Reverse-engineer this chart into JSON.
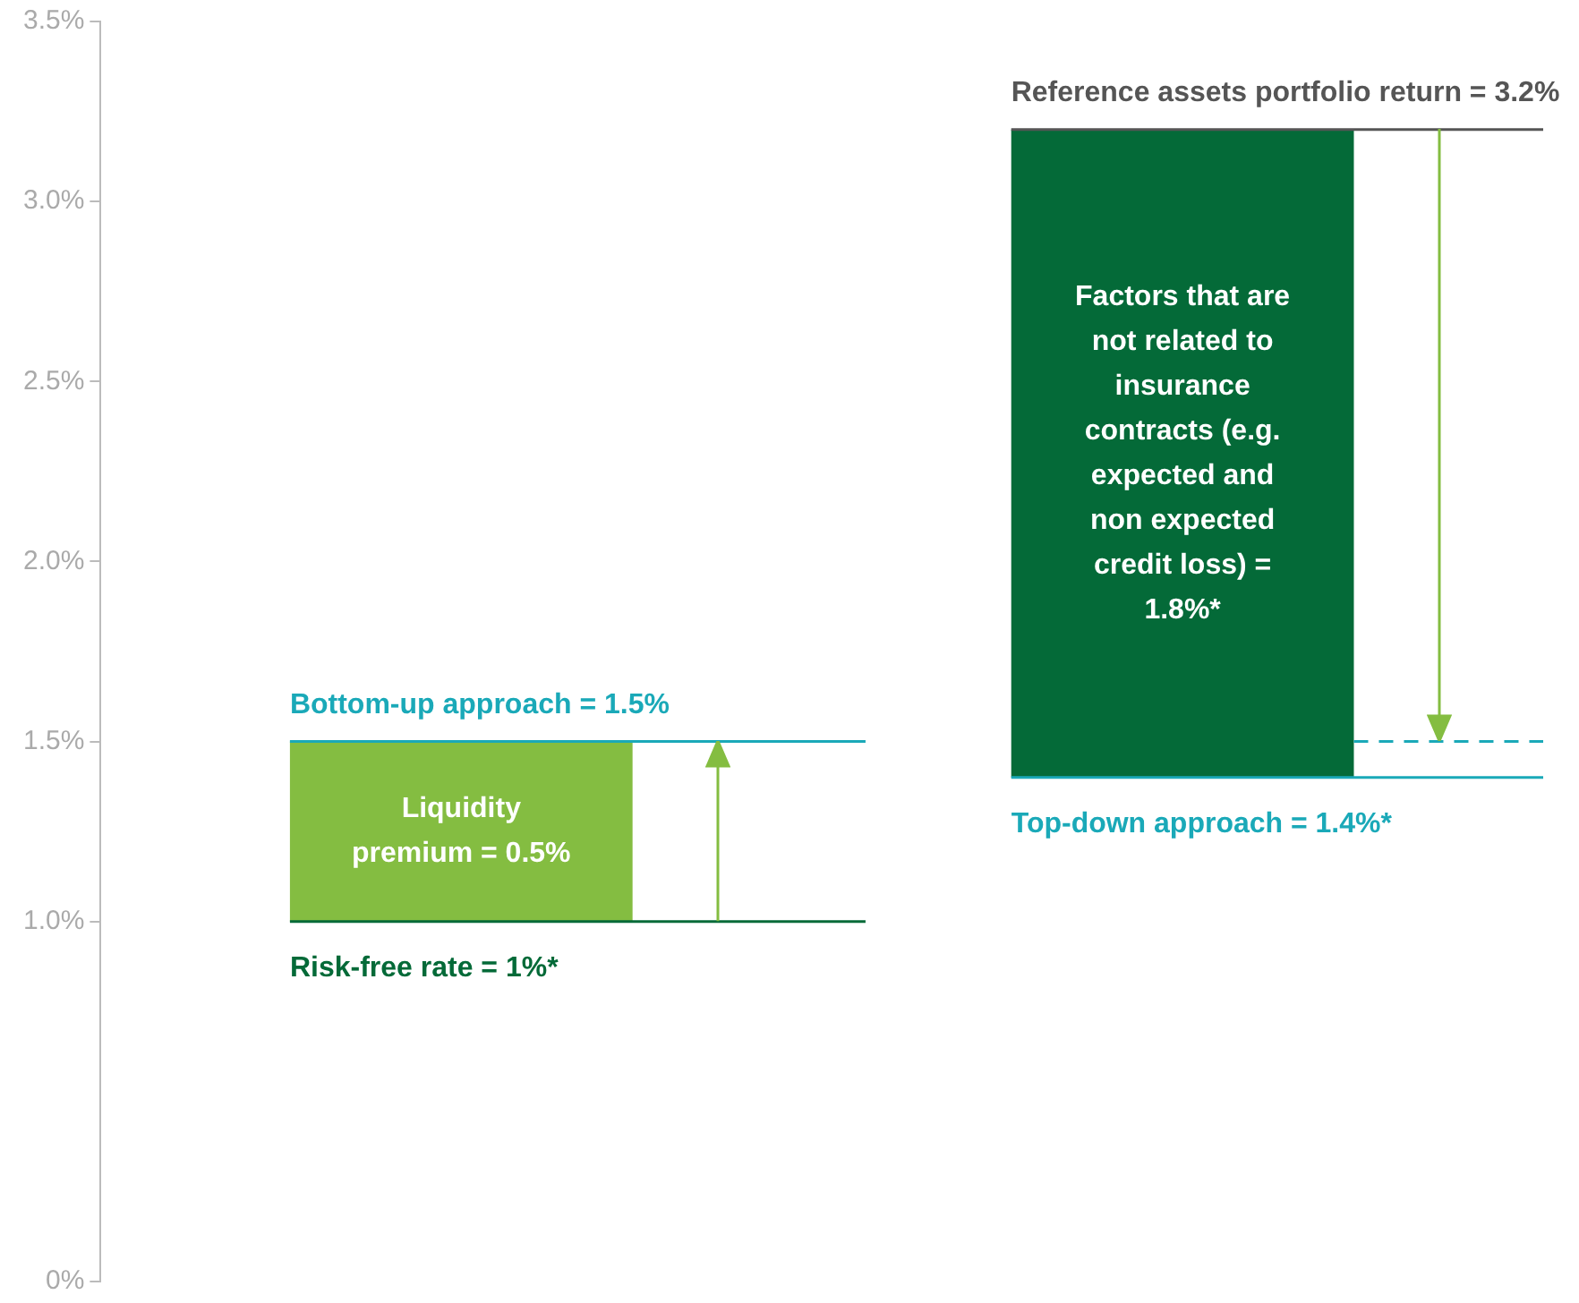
{
  "chart_data": {
    "type": "bar",
    "categories": [
      null,
      null
    ],
    "base": [
      1.0,
      1.4
    ],
    "values": [
      0.5,
      1.8
    ],
    "colors": [
      "#84bd41",
      "#046a38"
    ],
    "value_labels": [
      "Liquidity premium = 0.5%",
      "Factors that are not related to insurance contracts (e.g. expected and non expected credit loss) = 1.8%*"
    ],
    "ylim": [
      0,
      3.5
    ],
    "yticks": [
      {
        "value": 0,
        "label": "0%"
      },
      {
        "value": 1,
        "label": "1.0%"
      },
      {
        "value": 1.5,
        "label": "1.5%"
      },
      {
        "value": 2,
        "label": "2.0%"
      },
      {
        "value": 2.5,
        "label": "2.5%"
      },
      {
        "value": 3,
        "label": "3.0%"
      },
      {
        "value": 3.5,
        "label": "3.5%"
      }
    ],
    "tick_labels": "y",
    "grid": false,
    "legend": false,
    "ref_lines": [
      {
        "axis": "y",
        "value": 1.5,
        "label": "Bottom-up approach = 1.5%",
        "color": "#1aa9b8"
      },
      {
        "axis": "y",
        "value": 1.0,
        "label": "Risk-free rate = 1%*",
        "color": "#046a38"
      },
      {
        "axis": "y",
        "value": 3.2,
        "label": "Reference assets portfolio return = 3.2%",
        "color": "#555555"
      },
      {
        "axis": "y",
        "value": 1.4,
        "label": "Top-down approach = 1.4%*",
        "color": "#1aa9b8"
      },
      {
        "axis": "y",
        "value": 1.5,
        "color": "#1aa9b8",
        "line_style": "dashed"
      }
    ]
  }
}
